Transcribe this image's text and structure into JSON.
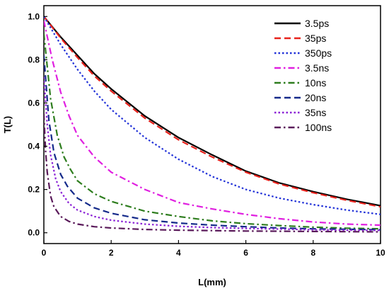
{
  "chart_data": {
    "type": "line",
    "title": "",
    "xlabel": "L(mm)",
    "ylabel": "T(L)",
    "xlim": [
      0,
      10
    ],
    "ylim": [
      -0.05,
      1.05
    ],
    "xticks": [
      "0",
      "2",
      "4",
      "6",
      "8",
      "10"
    ],
    "yticks": [
      "0.0",
      "0.2",
      "0.4",
      "0.6",
      "0.8",
      "1.0"
    ],
    "grid": false,
    "legend_position": "top-right",
    "series": [
      {
        "name": "3.5ps",
        "color": "#000000",
        "dash": "solid",
        "x": [
          0,
          0.5,
          1,
          1.5,
          2,
          3,
          4,
          5,
          6,
          7,
          8,
          9,
          10
        ],
        "y": [
          1.0,
          0.905,
          0.82,
          0.735,
          0.665,
          0.54,
          0.44,
          0.36,
          0.285,
          0.23,
          0.19,
          0.155,
          0.125
        ]
      },
      {
        "name": "35ps",
        "color": "#e8221c",
        "dash": "dash",
        "x": [
          0,
          0.5,
          1,
          1.5,
          2,
          3,
          4,
          5,
          6,
          7,
          8,
          9,
          10
        ],
        "y": [
          1.0,
          0.9,
          0.81,
          0.725,
          0.655,
          0.53,
          0.43,
          0.35,
          0.28,
          0.225,
          0.185,
          0.15,
          0.12
        ]
      },
      {
        "name": "350ps",
        "color": "#2232d8",
        "dash": "dot",
        "x": [
          0,
          0.5,
          1,
          1.5,
          2,
          3,
          4,
          5,
          6,
          7,
          8,
          9,
          10
        ],
        "y": [
          1.0,
          0.87,
          0.755,
          0.655,
          0.57,
          0.44,
          0.34,
          0.26,
          0.2,
          0.16,
          0.13,
          0.105,
          0.085
        ]
      },
      {
        "name": "3.5ns",
        "color": "#e020e0",
        "dash": "dashdot",
        "x": [
          0,
          0.25,
          0.5,
          0.75,
          1,
          1.5,
          2,
          3,
          4,
          5,
          6,
          7,
          8,
          9,
          10
        ],
        "y": [
          0.98,
          0.8,
          0.65,
          0.54,
          0.45,
          0.35,
          0.28,
          0.2,
          0.14,
          0.11,
          0.085,
          0.065,
          0.05,
          0.04,
          0.035
        ]
      },
      {
        "name": "10ns",
        "color": "#2e7d1e",
        "dash": "dashdot",
        "x": [
          0,
          0.2,
          0.4,
          0.6,
          0.8,
          1,
          1.5,
          2,
          3,
          4,
          5,
          6,
          7,
          8,
          9,
          10
        ],
        "y": [
          0.92,
          0.62,
          0.45,
          0.35,
          0.29,
          0.24,
          0.18,
          0.145,
          0.1,
          0.075,
          0.055,
          0.042,
          0.033,
          0.026,
          0.021,
          0.018
        ]
      },
      {
        "name": "20ns",
        "color": "#142a8a",
        "dash": "dash",
        "x": [
          0,
          0.15,
          0.3,
          0.5,
          0.7,
          1,
          1.5,
          2,
          3,
          4,
          5,
          6,
          7,
          8,
          9,
          10
        ],
        "y": [
          0.82,
          0.52,
          0.37,
          0.27,
          0.215,
          0.16,
          0.115,
          0.09,
          0.06,
          0.045,
          0.035,
          0.028,
          0.022,
          0.018,
          0.016,
          0.014
        ]
      },
      {
        "name": "35ns",
        "color": "#8b22d6",
        "dash": "dot",
        "x": [
          0,
          0.1,
          0.2,
          0.35,
          0.5,
          0.75,
          1,
          1.5,
          2,
          3,
          4,
          5,
          6,
          7,
          8,
          9,
          10
        ],
        "y": [
          0.72,
          0.5,
          0.36,
          0.25,
          0.19,
          0.135,
          0.105,
          0.075,
          0.058,
          0.04,
          0.03,
          0.024,
          0.02,
          0.017,
          0.014,
          0.012,
          0.011
        ]
      },
      {
        "name": "100ns",
        "color": "#5a1a5a",
        "dash": "dashdot",
        "x": [
          0,
          0.05,
          0.1,
          0.2,
          0.3,
          0.5,
          0.75,
          1,
          1.5,
          2,
          3,
          4,
          5,
          6,
          7,
          8,
          9,
          10
        ],
        "y": [
          0.55,
          0.38,
          0.28,
          0.17,
          0.12,
          0.075,
          0.052,
          0.04,
          0.028,
          0.022,
          0.015,
          0.012,
          0.01,
          0.008,
          0.007,
          0.006,
          0.005,
          0.004
        ]
      }
    ]
  }
}
